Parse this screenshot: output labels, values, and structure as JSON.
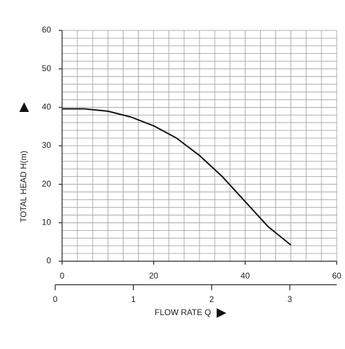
{
  "chart_data": {
    "type": "line",
    "xlabel": "FLOW RATE Q",
    "ylabel": "TOTAL HEAD H(m)",
    "x": [
      0,
      5,
      10,
      15,
      20,
      25,
      30,
      35,
      40,
      45,
      50
    ],
    "series": [
      {
        "color": "#111111",
        "values": [
          39.6,
          39.6,
          39.0,
          37.5,
          35.2,
          32.0,
          27.5,
          22.0,
          15.5,
          9.0,
          4.2
        ]
      }
    ],
    "xlim": [
      0,
      60
    ],
    "xticks": [
      0,
      20,
      40,
      60
    ],
    "ylim": [
      0,
      60
    ],
    "yticks": [
      0,
      10,
      20,
      30,
      40,
      50,
      60
    ],
    "x2lim": [
      0,
      3.6
    ],
    "x2ticks": [
      0,
      1,
      2,
      3
    ],
    "xgrid": [
      0,
      3.333,
      6.667,
      10,
      13.333,
      16.667,
      20,
      23.333,
      26.667,
      30,
      33.333,
      36.667,
      40,
      43.333,
      46.667,
      50,
      53.333,
      56.667,
      60
    ],
    "ygrid": [
      0,
      2,
      4,
      6,
      8,
      10,
      12,
      14,
      16,
      18,
      20,
      22,
      24,
      26,
      28,
      30,
      32,
      34,
      36,
      38,
      40,
      42,
      44,
      46,
      48,
      50,
      52,
      54,
      56,
      58,
      60
    ],
    "grid": true
  }
}
